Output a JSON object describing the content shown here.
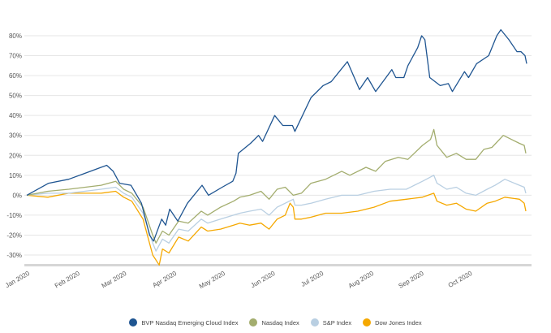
{
  "chart_data": {
    "type": "line",
    "title": "",
    "xlabel": "",
    "ylabel": "",
    "x_unit": "days since Jan 1 2020",
    "xlim": [
      0,
      311
    ],
    "ylim": [
      -30,
      80
    ],
    "grid": true,
    "legend_position": "bottom",
    "y_ticks": [
      {
        "value": 80,
        "label": "80%"
      },
      {
        "value": 70,
        "label": "70%"
      },
      {
        "value": 60,
        "label": "60%"
      },
      {
        "value": 50,
        "label": "50%"
      },
      {
        "value": 40,
        "label": "40%"
      },
      {
        "value": 30,
        "label": "30%"
      },
      {
        "value": 20,
        "label": "20%"
      },
      {
        "value": 10,
        "label": "10%"
      },
      {
        "value": 0,
        "label": "0%"
      },
      {
        "value": -10,
        "label": "-10%"
      },
      {
        "value": -20,
        "label": "-20%"
      },
      {
        "value": -30,
        "label": "-30%"
      }
    ],
    "x_ticks": [
      {
        "value": 0,
        "label": "Jan 2020"
      },
      {
        "value": 31,
        "label": "Feb 2020"
      },
      {
        "value": 60,
        "label": "Mar 2020"
      },
      {
        "value": 91,
        "label": "Apr 2020"
      },
      {
        "value": 121,
        "label": "May 2020"
      },
      {
        "value": 152,
        "label": "Jun 2020"
      },
      {
        "value": 182,
        "label": "Jul 2020"
      },
      {
        "value": 213,
        "label": "Aug 2020"
      },
      {
        "value": 244,
        "label": "Sep 2020"
      },
      {
        "value": 274,
        "label": "Oct 2020"
      }
    ],
    "series": [
      {
        "name": "BVP Nasdaq Emerging Cloud Index",
        "color": "#1f5591",
        "points": [
          [
            0,
            0
          ],
          [
            13.5,
            6
          ],
          [
            26,
            8
          ],
          [
            36,
            11
          ],
          [
            46,
            14
          ],
          [
            49.5,
            15
          ],
          [
            53.5,
            12
          ],
          [
            57.5,
            6
          ],
          [
            64.5,
            5
          ],
          [
            71,
            -4
          ],
          [
            76,
            -20
          ],
          [
            78.5,
            -23
          ],
          [
            83.5,
            -12
          ],
          [
            86,
            -15
          ],
          [
            88.5,
            -7
          ],
          [
            93.5,
            -13
          ],
          [
            99.5,
            -4
          ],
          [
            108.5,
            5
          ],
          [
            112.5,
            0
          ],
          [
            121,
            4
          ],
          [
            127.5,
            7
          ],
          [
            129.5,
            11
          ],
          [
            131,
            21
          ],
          [
            138.5,
            26
          ],
          [
            143.5,
            30
          ],
          [
            146,
            27
          ],
          [
            153.5,
            40
          ],
          [
            158.5,
            35
          ],
          [
            164.5,
            35
          ],
          [
            166,
            32
          ],
          [
            176,
            49
          ],
          [
            183.5,
            55
          ],
          [
            188.5,
            57
          ],
          [
            193.5,
            62
          ],
          [
            198.5,
            67
          ],
          [
            206,
            53
          ],
          [
            211,
            59
          ],
          [
            216,
            52
          ],
          [
            226,
            63
          ],
          [
            228.5,
            59
          ],
          [
            233.5,
            59
          ],
          [
            236,
            65
          ],
          [
            242,
            74
          ],
          [
            244.5,
            80
          ],
          [
            246.5,
            78
          ],
          [
            249.5,
            59
          ],
          [
            256,
            55
          ],
          [
            261,
            56
          ],
          [
            263.5,
            52
          ],
          [
            271,
            62
          ],
          [
            273.5,
            59
          ],
          [
            278.5,
            66
          ],
          [
            286,
            70
          ],
          [
            291,
            80
          ],
          [
            293.5,
            83
          ],
          [
            298.5,
            78
          ],
          [
            303.5,
            72
          ],
          [
            306,
            72
          ],
          [
            308.5,
            70
          ],
          [
            309.5,
            66
          ]
        ]
      },
      {
        "name": "Nasdaq Index",
        "color": "#a3ad6e",
        "points": [
          [
            0,
            0
          ],
          [
            13,
            2
          ],
          [
            26,
            3
          ],
          [
            46,
            5
          ],
          [
            55,
            7
          ],
          [
            60,
            3
          ],
          [
            65,
            1
          ],
          [
            72,
            -6
          ],
          [
            78,
            -20
          ],
          [
            80,
            -24
          ],
          [
            84,
            -18
          ],
          [
            88,
            -20
          ],
          [
            94,
            -13
          ],
          [
            100,
            -14
          ],
          [
            108,
            -8
          ],
          [
            112,
            -10
          ],
          [
            120,
            -6
          ],
          [
            128,
            -3
          ],
          [
            132,
            -1
          ],
          [
            138,
            0
          ],
          [
            145,
            2
          ],
          [
            150,
            -2
          ],
          [
            155,
            3
          ],
          [
            160,
            4
          ],
          [
            165,
            0
          ],
          [
            170,
            1
          ],
          [
            176,
            6
          ],
          [
            185,
            8
          ],
          [
            195,
            12
          ],
          [
            200,
            10
          ],
          [
            210,
            14
          ],
          [
            216,
            12
          ],
          [
            222,
            17
          ],
          [
            230,
            19
          ],
          [
            236,
            18
          ],
          [
            245,
            25
          ],
          [
            250,
            28
          ],
          [
            252,
            33
          ],
          [
            254,
            25
          ],
          [
            260,
            19
          ],
          [
            266,
            21
          ],
          [
            272,
            18
          ],
          [
            278,
            18
          ],
          [
            283,
            23
          ],
          [
            288,
            24
          ],
          [
            295,
            30
          ],
          [
            300,
            28
          ],
          [
            305,
            26
          ],
          [
            308,
            25
          ],
          [
            309,
            21
          ]
        ]
      },
      {
        "name": "S&P Index",
        "color": "#b9cfe2",
        "points": [
          [
            0,
            0
          ],
          [
            13,
            1
          ],
          [
            26,
            1
          ],
          [
            46,
            3
          ],
          [
            55,
            4
          ],
          [
            60,
            1
          ],
          [
            65,
            -1
          ],
          [
            72,
            -9
          ],
          [
            78,
            -24
          ],
          [
            80,
            -28
          ],
          [
            84,
            -22
          ],
          [
            88,
            -24
          ],
          [
            94,
            -17
          ],
          [
            100,
            -18
          ],
          [
            108,
            -12
          ],
          [
            112,
            -14
          ],
          [
            120,
            -12
          ],
          [
            128,
            -10
          ],
          [
            132,
            -9
          ],
          [
            138,
            -8
          ],
          [
            145,
            -7
          ],
          [
            150,
            -10
          ],
          [
            155,
            -6
          ],
          [
            160,
            -4
          ],
          [
            165,
            -2
          ],
          [
            166,
            -5
          ],
          [
            170,
            -5
          ],
          [
            176,
            -4
          ],
          [
            185,
            -2
          ],
          [
            195,
            0
          ],
          [
            205,
            0
          ],
          [
            215,
            2
          ],
          [
            225,
            3
          ],
          [
            235,
            3
          ],
          [
            245,
            7
          ],
          [
            252,
            10
          ],
          [
            254,
            6
          ],
          [
            260,
            3
          ],
          [
            266,
            4
          ],
          [
            272,
            1
          ],
          [
            278,
            0
          ],
          [
            285,
            3
          ],
          [
            290,
            5
          ],
          [
            296,
            8
          ],
          [
            305,
            5
          ],
          [
            308,
            4
          ],
          [
            309,
            1
          ]
        ]
      },
      {
        "name": "Dow Jones Index",
        "color": "#f5a800",
        "points": [
          [
            0,
            0
          ],
          [
            13,
            -1
          ],
          [
            26,
            1
          ],
          [
            46,
            1
          ],
          [
            55,
            2
          ],
          [
            60,
            -1
          ],
          [
            65,
            -3
          ],
          [
            72,
            -12
          ],
          [
            78,
            -30
          ],
          [
            82,
            -35
          ],
          [
            84,
            -27
          ],
          [
            88,
            -29
          ],
          [
            94,
            -21
          ],
          [
            100,
            -23
          ],
          [
            108,
            -16
          ],
          [
            112,
            -18
          ],
          [
            120,
            -17
          ],
          [
            128,
            -15
          ],
          [
            132,
            -14
          ],
          [
            138,
            -15
          ],
          [
            145,
            -14
          ],
          [
            150,
            -17
          ],
          [
            155,
            -12
          ],
          [
            160,
            -10
          ],
          [
            163,
            -4
          ],
          [
            165,
            -6
          ],
          [
            166,
            -12
          ],
          [
            170,
            -12
          ],
          [
            176,
            -11
          ],
          [
            185,
            -9
          ],
          [
            195,
            -9
          ],
          [
            205,
            -8
          ],
          [
            215,
            -6
          ],
          [
            225,
            -3
          ],
          [
            235,
            -2
          ],
          [
            245,
            -1
          ],
          [
            252,
            1
          ],
          [
            254,
            -3
          ],
          [
            260,
            -5
          ],
          [
            266,
            -4
          ],
          [
            272,
            -7
          ],
          [
            278,
            -8
          ],
          [
            285,
            -4
          ],
          [
            290,
            -3
          ],
          [
            296,
            -1
          ],
          [
            305,
            -2
          ],
          [
            308,
            -4
          ],
          [
            309,
            -8
          ]
        ]
      }
    ]
  }
}
